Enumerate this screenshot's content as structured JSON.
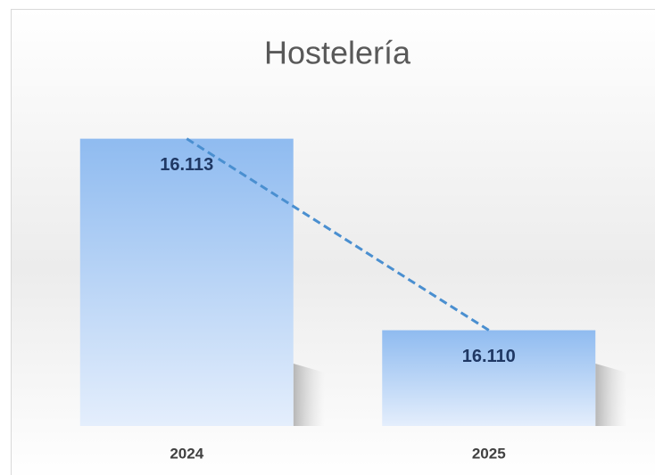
{
  "chart_data": {
    "type": "bar",
    "title": "Hostelería",
    "categories": [
      "2024",
      "2025"
    ],
    "values": [
      16113,
      16110
    ],
    "value_labels": [
      "16.113",
      "16.110"
    ],
    "color": "#8fbbf0",
    "ylim": [
      16108.5,
      16114
    ],
    "trendline": true,
    "trendline_color": "#4a8fd0",
    "grid": false
  }
}
